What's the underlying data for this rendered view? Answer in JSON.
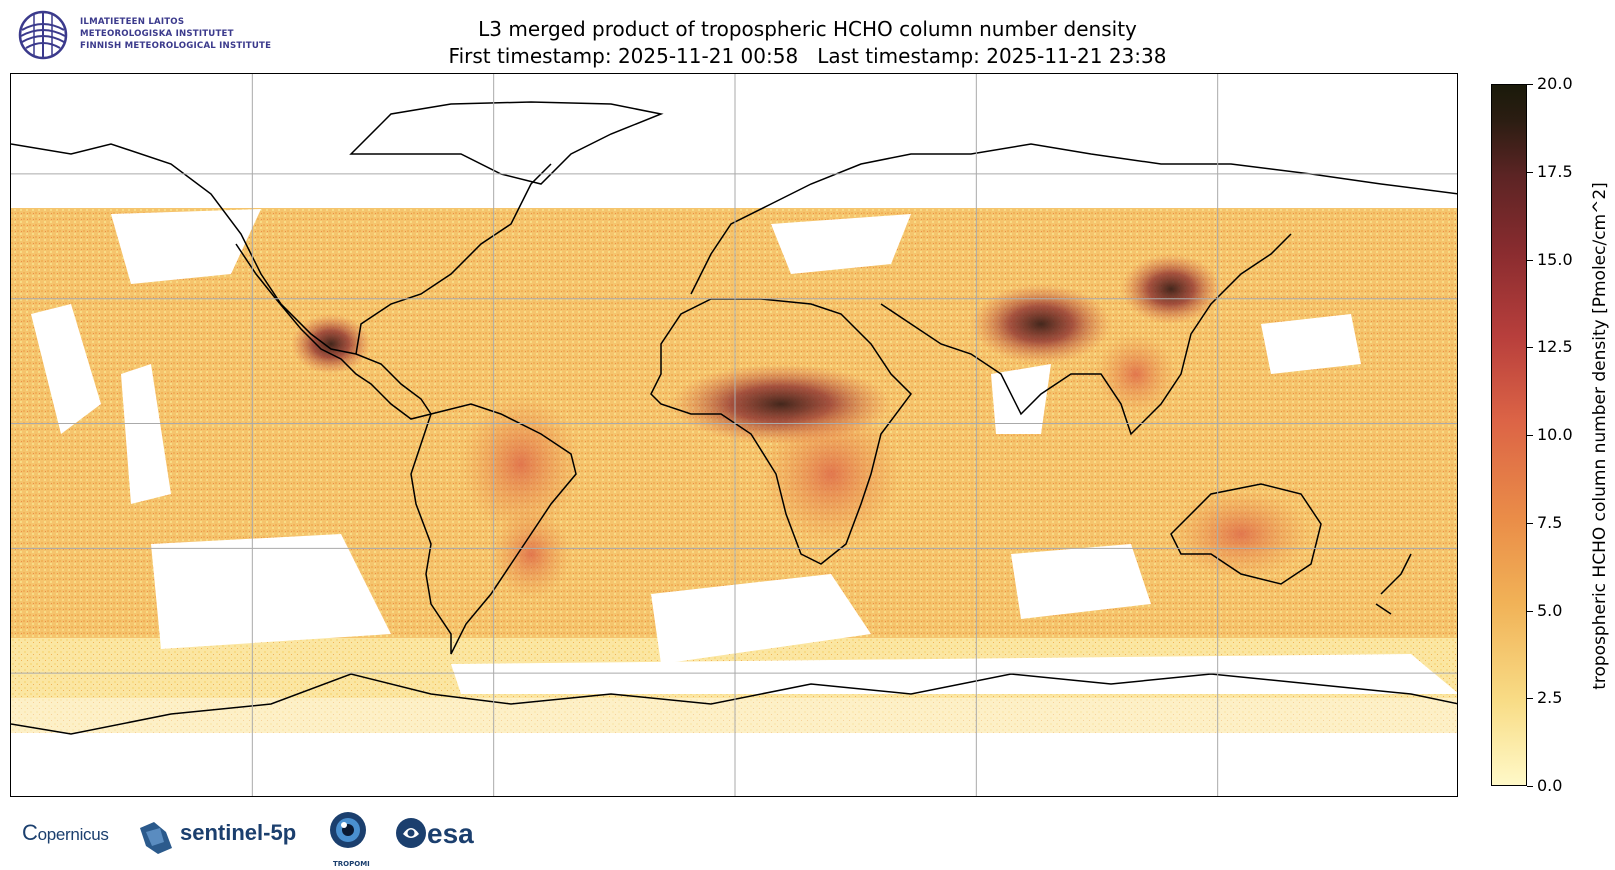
{
  "institute": {
    "lines": [
      "ILMATIETEEN LAITOS",
      "METEOROLOGISKA INSTITUTET",
      "FINNISH METEOROLOGICAL INSTITUTE"
    ]
  },
  "title": {
    "line1": "L3 merged product of tropospheric HCHO column number density",
    "line2": "First timestamp: 2025-11-21 00:58   Last timestamp: 2025-11-21 23:38"
  },
  "colorbar": {
    "label": "tropospheric HCHO column number density [Pmolec/cm^2]",
    "min": 0.0,
    "max": 20.0,
    "ticks": [
      "0.0",
      "2.5",
      "5.0",
      "7.5",
      "10.0",
      "12.5",
      "15.0",
      "17.5",
      "20.0"
    ],
    "tick_values": [
      0.0,
      2.5,
      5.0,
      7.5,
      10.0,
      12.5,
      15.0,
      17.5,
      20.0
    ]
  },
  "map": {
    "projection": "plate carree",
    "gridlines": true,
    "gridline_lon": [
      -120,
      -60,
      0,
      60,
      120
    ],
    "gridline_lat": [
      -60,
      -30,
      0,
      30,
      60
    ]
  },
  "partners": {
    "copernicus": "opernicus",
    "sentinel": "sentinel-5p",
    "tropomi": "TROPOMI",
    "esa": "esa"
  },
  "colors": {
    "low": "#fff9c8",
    "mid": "#ea8d48",
    "high": "#b83f3c",
    "max": "#1a1a0a",
    "brand_blue": "#1b3f6e",
    "fmi_purple": "#3b3a8c"
  }
}
